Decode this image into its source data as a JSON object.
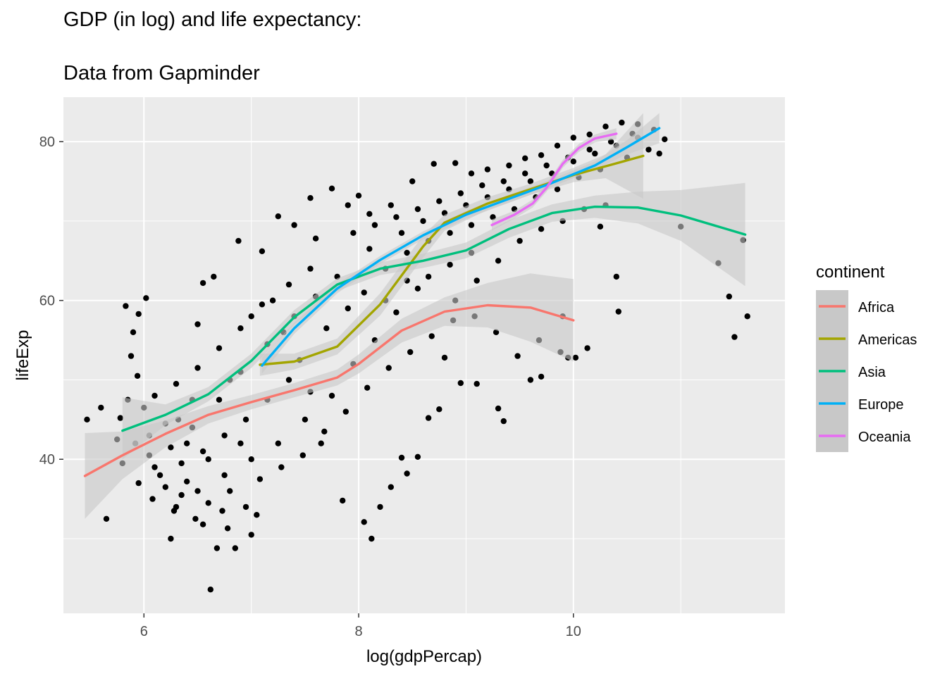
{
  "title": "GDP (in log) and life expectancy:",
  "subtitle": "Data from Gapminder",
  "chart_data": {
    "type": "scatter",
    "xlabel": "log(gdpPercap)",
    "ylabel": "lifeExp",
    "xlim": [
      5.25,
      11.97
    ],
    "ylim": [
      20.6,
      85.6
    ],
    "xticks": [
      6,
      8,
      10
    ],
    "yticks": [
      40,
      60,
      80
    ],
    "xtick_labels": [
      "6",
      "8",
      "10"
    ],
    "ytick_labels": [
      "40",
      "60",
      "80"
    ],
    "grid": true,
    "legend": {
      "title": "continent",
      "placement": "right",
      "items": [
        "Africa",
        "Americas",
        "Asia",
        "Europe",
        "Oceania"
      ]
    },
    "colors": {
      "Africa": "#F8766D",
      "Americas": "#A3A500",
      "Asia": "#00BF7D",
      "Europe": "#00B0F6",
      "Oceania": "#E76BF3",
      "points": "#000000",
      "ribbon": "#c8c8c8",
      "panel": "#ebebeb",
      "grid": "#ffffff"
    },
    "smooth_series": [
      {
        "name": "Africa",
        "x": [
          5.45,
          5.8,
          6.2,
          6.6,
          7.0,
          7.4,
          7.8,
          8.0,
          8.4,
          8.8,
          9.2,
          9.6,
          10.0
        ],
        "y": [
          37.9,
          40.5,
          43.2,
          45.6,
          47.2,
          48.7,
          50.3,
          52.0,
          56.2,
          58.6,
          59.4,
          59.1,
          57.5
        ],
        "lower": [
          32.5,
          37.5,
          41.5,
          44.5,
          46.3,
          47.8,
          49.3,
          50.8,
          54.7,
          56.8,
          56.6,
          54.8,
          52.3
        ],
        "upper": [
          43.3,
          43.5,
          44.9,
          46.7,
          48.1,
          49.6,
          51.3,
          53.2,
          57.7,
          60.4,
          62.2,
          63.4,
          62.7
        ]
      },
      {
        "name": "Americas",
        "x": [
          7.08,
          7.4,
          7.8,
          8.2,
          8.6,
          8.8,
          9.2,
          9.6,
          10.0,
          10.3,
          10.65
        ],
        "y": [
          51.9,
          52.3,
          54.2,
          59.5,
          66.8,
          69.8,
          72.2,
          74.0,
          75.8,
          76.9,
          78.2
        ],
        "lower": [
          50.5,
          51.3,
          53.2,
          58.1,
          65.4,
          68.8,
          71.4,
          73.3,
          74.9,
          75.4,
          72.8
        ],
        "upper": [
          53.3,
          53.3,
          55.2,
          60.9,
          68.2,
          70.8,
          73.0,
          74.7,
          76.7,
          78.4,
          83.6
        ]
      },
      {
        "name": "Asia",
        "x": [
          5.8,
          6.2,
          6.6,
          7.0,
          7.4,
          7.8,
          8.2,
          8.6,
          9.0,
          9.4,
          9.8,
          10.2,
          10.6,
          11.0,
          11.6
        ],
        "y": [
          43.6,
          45.6,
          48.2,
          52.4,
          57.9,
          62.0,
          64.0,
          65.0,
          66.3,
          69.0,
          71.0,
          71.8,
          71.7,
          70.7,
          68.3
        ],
        "lower": [
          40.0,
          44.3,
          47.3,
          51.5,
          57.0,
          61.2,
          63.2,
          64.1,
          65.3,
          67.9,
          69.9,
          70.4,
          69.7,
          67.5,
          61.8
        ],
        "upper": [
          47.8,
          46.9,
          49.1,
          53.3,
          58.8,
          62.8,
          64.8,
          65.9,
          67.3,
          70.1,
          72.1,
          73.2,
          73.7,
          73.9,
          74.8
        ]
      },
      {
        "name": "Europe",
        "x": [
          7.1,
          7.4,
          7.8,
          8.2,
          8.6,
          9.0,
          9.4,
          9.8,
          10.2,
          10.5,
          10.8
        ],
        "y": [
          51.8,
          56.5,
          61.5,
          65.1,
          68.2,
          70.8,
          72.8,
          74.8,
          77.0,
          79.3,
          81.7
        ],
        "lower": [
          50.8,
          55.8,
          60.9,
          64.6,
          67.7,
          70.3,
          72.3,
          74.3,
          76.5,
          78.4,
          79.8
        ],
        "upper": [
          52.8,
          57.2,
          62.1,
          65.6,
          68.7,
          71.3,
          73.3,
          75.3,
          77.5,
          80.2,
          83.6
        ]
      },
      {
        "name": "Oceania",
        "x": [
          9.24,
          9.45,
          9.62,
          9.75,
          9.9,
          10.05,
          10.2,
          10.4
        ],
        "y": [
          69.5,
          70.8,
          72.2,
          74.2,
          77.2,
          79.2,
          80.4,
          81.0
        ],
        "lower": [
          68.8,
          70.3,
          71.7,
          73.7,
          76.7,
          78.7,
          79.9,
          80.3
        ],
        "upper": [
          70.2,
          71.3,
          72.7,
          74.7,
          77.7,
          79.7,
          80.9,
          81.7
        ]
      }
    ],
    "points": [
      [
        5.47,
        45.0
      ],
      [
        5.65,
        32.5
      ],
      [
        5.6,
        46.5
      ],
      [
        5.78,
        45.2
      ],
      [
        5.83,
        59.3
      ],
      [
        5.88,
        53.0
      ],
      [
        5.9,
        56.0
      ],
      [
        5.95,
        58.3
      ],
      [
        6.02,
        60.3
      ],
      [
        5.94,
        50.5
      ],
      [
        5.85,
        47.5
      ],
      [
        5.92,
        42.0
      ],
      [
        6.05,
        40.5
      ],
      [
        6.1,
        39.0
      ],
      [
        6.2,
        36.5
      ],
      [
        6.3,
        34.0
      ],
      [
        6.35,
        35.5
      ],
      [
        6.4,
        37.2
      ],
      [
        6.32,
        45.0
      ],
      [
        6.45,
        47.5
      ],
      [
        6.25,
        30.0
      ],
      [
        6.55,
        31.8
      ],
      [
        6.62,
        23.6
      ],
      [
        6.68,
        28.8
      ],
      [
        6.73,
        33.5
      ],
      [
        6.78,
        31.3
      ],
      [
        6.85,
        28.8
      ],
      [
        6.95,
        34.0
      ],
      [
        7.05,
        33.0
      ],
      [
        7.0,
        30.5
      ],
      [
        6.9,
        42.0
      ],
      [
        6.5,
        57.0
      ],
      [
        6.55,
        62.2
      ],
      [
        6.65,
        63.0
      ],
      [
        6.88,
        67.5
      ],
      [
        7.1,
        66.2
      ],
      [
        7.25,
        70.6
      ],
      [
        7.4,
        69.5
      ],
      [
        7.55,
        72.9
      ],
      [
        7.6,
        67.8
      ],
      [
        7.75,
        74.1
      ],
      [
        7.9,
        72.0
      ],
      [
        8.0,
        73.2
      ],
      [
        8.1,
        70.9
      ],
      [
        8.3,
        72.0
      ],
      [
        8.5,
        75.0
      ],
      [
        8.7,
        77.2
      ],
      [
        8.9,
        77.3
      ],
      [
        9.05,
        76.0
      ],
      [
        9.2,
        76.5
      ],
      [
        9.4,
        77.0
      ],
      [
        9.55,
        77.9
      ],
      [
        9.7,
        78.3
      ],
      [
        9.85,
        79.5
      ],
      [
        10.0,
        80.5
      ],
      [
        10.15,
        80.9
      ],
      [
        10.3,
        81.9
      ],
      [
        10.45,
        82.4
      ],
      [
        10.6,
        82.2
      ],
      [
        10.75,
        81.5
      ],
      [
        10.85,
        80.3
      ],
      [
        11.0,
        69.3
      ],
      [
        11.35,
        64.7
      ],
      [
        11.45,
        60.5
      ],
      [
        11.5,
        55.4
      ],
      [
        11.62,
        58.0
      ],
      [
        11.58,
        67.6
      ],
      [
        10.4,
        63.0
      ],
      [
        10.42,
        58.6
      ],
      [
        10.25,
        69.3
      ],
      [
        9.9,
        58.0
      ],
      [
        9.95,
        52.8
      ],
      [
        9.7,
        50.4
      ],
      [
        9.6,
        50.0
      ],
      [
        9.35,
        44.8
      ],
      [
        9.3,
        46.4
      ],
      [
        9.1,
        49.5
      ],
      [
        8.95,
        49.6
      ],
      [
        8.8,
        52.8
      ],
      [
        8.75,
        46.3
      ],
      [
        8.65,
        45.2
      ],
      [
        8.55,
        40.3
      ],
      [
        8.45,
        38.2
      ],
      [
        8.4,
        40.2
      ],
      [
        8.3,
        36.5
      ],
      [
        8.2,
        34.0
      ],
      [
        8.12,
        30.0
      ],
      [
        8.05,
        32.1
      ],
      [
        7.85,
        34.8
      ],
      [
        7.65,
        42.0
      ],
      [
        7.55,
        48.5
      ],
      [
        7.45,
        52.5
      ],
      [
        7.3,
        56.0
      ],
      [
        7.2,
        60.0
      ],
      [
        7.0,
        58.0
      ],
      [
        6.8,
        50.0
      ],
      [
        6.6,
        40.0
      ],
      [
        6.4,
        42.0
      ],
      [
        6.2,
        44.5
      ],
      [
        6.0,
        46.5
      ],
      [
        7.8,
        63.0
      ],
      [
        8.1,
        66.5
      ],
      [
        8.4,
        68.5
      ],
      [
        8.6,
        70.0
      ],
      [
        8.8,
        71.0
      ],
      [
        9.0,
        72.0
      ],
      [
        9.2,
        73.0
      ],
      [
        9.4,
        74.0
      ],
      [
        9.6,
        75.0
      ],
      [
        9.8,
        76.0
      ],
      [
        10.0,
        77.5
      ],
      [
        10.2,
        78.5
      ],
      [
        10.4,
        79.5
      ],
      [
        10.6,
        80.5
      ],
      [
        10.7,
        79.0
      ],
      [
        8.55,
        61.5
      ],
      [
        8.35,
        58.5
      ],
      [
        8.15,
        55.0
      ],
      [
        7.95,
        52.0
      ],
      [
        7.75,
        48.0
      ],
      [
        7.5,
        45.0
      ],
      [
        7.25,
        42.0
      ],
      [
        7.0,
        40.0
      ],
      [
        6.75,
        38.0
      ],
      [
        6.5,
        36.0
      ],
      [
        8.9,
        60.0
      ],
      [
        9.1,
        62.5
      ],
      [
        9.3,
        65.0
      ],
      [
        9.5,
        67.5
      ],
      [
        9.7,
        69.0
      ],
      [
        9.9,
        70.0
      ],
      [
        10.1,
        71.5
      ],
      [
        10.3,
        72.0
      ],
      [
        7.6,
        60.5
      ],
      [
        7.4,
        58.0
      ],
      [
        7.15,
        54.5
      ],
      [
        6.9,
        51.0
      ],
      [
        6.7,
        47.5
      ],
      [
        6.45,
        44.0
      ],
      [
        6.25,
        41.5
      ],
      [
        6.05,
        43.0
      ],
      [
        8.25,
        64.0
      ],
      [
        8.45,
        66.0
      ],
      [
        8.65,
        67.5
      ],
      [
        8.85,
        68.5
      ],
      [
        9.05,
        69.5
      ],
      [
        9.25,
        70.5
      ],
      [
        9.45,
        71.5
      ],
      [
        9.65,
        73.0
      ],
      [
        9.85,
        74.0
      ],
      [
        10.05,
        75.5
      ],
      [
        10.25,
        76.5
      ],
      [
        10.5,
        78.0
      ],
      [
        7.7,
        56.5
      ],
      [
        7.9,
        59.0
      ],
      [
        8.05,
        61.0
      ],
      [
        8.25,
        60.0
      ],
      [
        8.45,
        62.5
      ],
      [
        8.65,
        63.0
      ],
      [
        8.85,
        64.5
      ],
      [
        9.05,
        66.0
      ],
      [
        7.35,
        50.0
      ],
      [
        7.15,
        47.5
      ],
      [
        6.95,
        45.0
      ],
      [
        6.75,
        43.0
      ],
      [
        6.55,
        41.0
      ],
      [
        6.35,
        39.5
      ],
      [
        6.15,
        38.0
      ],
      [
        5.95,
        37.0
      ],
      [
        5.8,
        39.5
      ],
      [
        5.75,
        42.5
      ],
      [
        6.08,
        35.0
      ],
      [
        6.28,
        33.5
      ],
      [
        6.48,
        32.5
      ],
      [
        6.6,
        34.5
      ],
      [
        6.8,
        36.0
      ],
      [
        7.08,
        37.5
      ],
      [
        7.28,
        39.0
      ],
      [
        7.48,
        40.5
      ],
      [
        7.68,
        43.5
      ],
      [
        7.88,
        46.0
      ],
      [
        8.08,
        49.0
      ],
      [
        8.28,
        51.5
      ],
      [
        8.48,
        53.5
      ],
      [
        8.68,
        55.5
      ],
      [
        8.88,
        57.5
      ],
      [
        9.08,
        58.0
      ],
      [
        9.28,
        56.0
      ],
      [
        9.48,
        53.0
      ],
      [
        9.68,
        55.0
      ],
      [
        9.88,
        53.5
      ],
      [
        10.02,
        52.8
      ],
      [
        10.13,
        54.0
      ],
      [
        7.55,
        64.0
      ],
      [
        7.35,
        62.0
      ],
      [
        7.1,
        59.5
      ],
      [
        6.9,
        56.5
      ],
      [
        6.7,
        54.0
      ],
      [
        6.5,
        51.5
      ],
      [
        6.3,
        49.5
      ],
      [
        6.1,
        48.0
      ],
      [
        7.95,
        68.5
      ],
      [
        8.15,
        69.5
      ],
      [
        8.35,
        70.5
      ],
      [
        8.55,
        71.5
      ],
      [
        8.75,
        72.5
      ],
      [
        8.95,
        73.5
      ],
      [
        9.15,
        74.5
      ],
      [
        9.35,
        75.0
      ],
      [
        9.55,
        76.0
      ],
      [
        9.75,
        77.0
      ],
      [
        9.95,
        78.0
      ],
      [
        10.15,
        79.0
      ],
      [
        10.35,
        80.0
      ],
      [
        10.55,
        81.0
      ],
      [
        10.8,
        78.5
      ]
    ]
  }
}
